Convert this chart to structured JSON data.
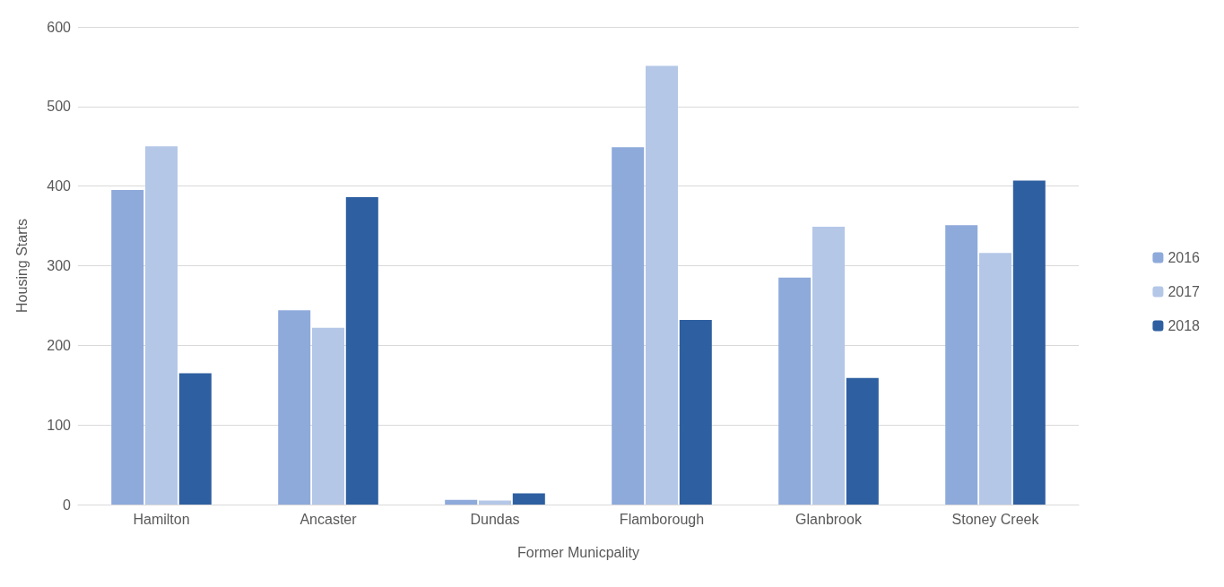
{
  "chart_data": {
    "type": "bar",
    "xlabel": "Former Municpality",
    "ylabel": "Housing Starts",
    "categories": [
      "Hamilton",
      "Ancaster",
      "Dundas",
      "Flamborough",
      "Glanbrook",
      "Stoney Creek"
    ],
    "series": [
      {
        "name": "2016",
        "color": "#8eaadb",
        "values": [
          395,
          244,
          6,
          449,
          285,
          351
        ]
      },
      {
        "name": "2017",
        "color": "#b4c7e7",
        "values": [
          450,
          222,
          5,
          551,
          349,
          316
        ]
      },
      {
        "name": "2018",
        "color": "#2e5fa0",
        "values": [
          165,
          386,
          14,
          232,
          159,
          407
        ]
      }
    ],
    "ylim": [
      0,
      600
    ],
    "yticks": [
      0,
      100,
      200,
      300,
      400,
      500,
      600
    ],
    "grid": "y",
    "legend": "right"
  }
}
